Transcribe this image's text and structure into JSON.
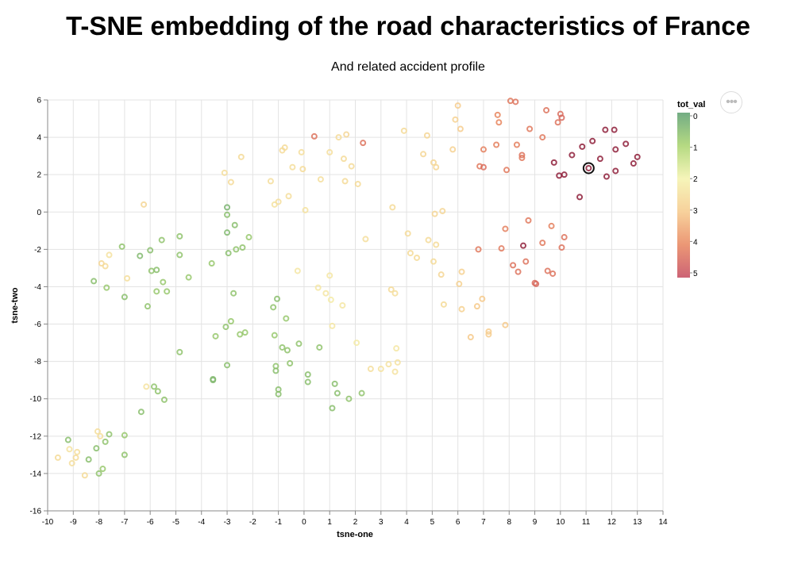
{
  "chart_data": {
    "type": "scatter",
    "title": "T-SNE embedding of the road characteristics of France",
    "subtitle": "And related accident profile",
    "xlabel": "tsne-one",
    "ylabel": "tsne-two",
    "xlim": [
      -10,
      14
    ],
    "ylim": [
      -16,
      6
    ],
    "xticks": [
      "-10",
      "-9",
      "-8",
      "-7",
      "-6",
      "-5",
      "-4",
      "-3",
      "-2",
      "-1",
      "0",
      "1",
      "2",
      "3",
      "4",
      "5",
      "6",
      "7",
      "8",
      "9",
      "10",
      "11",
      "12",
      "13",
      "14"
    ],
    "yticks": [
      "-16",
      "-14",
      "-12",
      "-10",
      "-8",
      "-6",
      "-4",
      "-2",
      "0",
      "2",
      "4",
      "6"
    ],
    "grid": true,
    "legend": {
      "title": "tot_val",
      "placement": "right",
      "domain": [
        0,
        5
      ],
      "labels": [
        "0",
        "1",
        "2",
        "3",
        "4",
        "5"
      ],
      "colors": [
        "#5a9e6f",
        "#a8d36c",
        "#f4f3ad",
        "#f6c98a",
        "#e8855d",
        "#c4485d"
      ]
    },
    "highlighted_point": {
      "x": 11.1,
      "y": 2.35,
      "value": 5
    },
    "points": [
      {
        "x": -8.2,
        "y": -3.7,
        "v": 0.6
      },
      {
        "x": -7.9,
        "y": -2.75,
        "v": 2.7
      },
      {
        "x": -7.75,
        "y": -2.9,
        "v": 2.6
      },
      {
        "x": -7.7,
        "y": -4.05,
        "v": 0.8
      },
      {
        "x": -7.6,
        "y": -2.3,
        "v": 2.4
      },
      {
        "x": -7.1,
        "y": -1.85,
        "v": 0.7
      },
      {
        "x": -7.0,
        "y": -4.55,
        "v": 0.6
      },
      {
        "x": -6.9,
        "y": -3.55,
        "v": 2.5
      },
      {
        "x": -6.4,
        "y": -2.35,
        "v": 0.5
      },
      {
        "x": -6.25,
        "y": 0.4,
        "v": 2.7
      },
      {
        "x": -6.1,
        "y": -5.05,
        "v": 0.7
      },
      {
        "x": -6.0,
        "y": -2.05,
        "v": 0.6
      },
      {
        "x": -5.95,
        "y": -3.15,
        "v": 0.7
      },
      {
        "x": -5.75,
        "y": -3.1,
        "v": 0.6
      },
      {
        "x": -5.75,
        "y": -4.25,
        "v": 0.8
      },
      {
        "x": -5.55,
        "y": -1.5,
        "v": 0.7
      },
      {
        "x": -5.5,
        "y": -3.75,
        "v": 0.8
      },
      {
        "x": -5.35,
        "y": -4.25,
        "v": 0.8
      },
      {
        "x": -4.85,
        "y": -1.3,
        "v": 0.7
      },
      {
        "x": -4.85,
        "y": -2.3,
        "v": 0.7
      },
      {
        "x": -4.5,
        "y": -3.5,
        "v": 0.8
      },
      {
        "x": -3.6,
        "y": -2.75,
        "v": 0.8
      },
      {
        "x": -3.45,
        "y": -6.65,
        "v": 0.8
      },
      {
        "x": -3.55,
        "y": -8.95,
        "v": 0.5
      },
      {
        "x": -3.55,
        "y": -9.0,
        "v": 0.5
      },
      {
        "x": -3.0,
        "y": -8.2,
        "v": 0.6
      },
      {
        "x": -3.05,
        "y": -6.15,
        "v": 0.7
      },
      {
        "x": -3.1,
        "y": 2.1,
        "v": 2.5
      },
      {
        "x": -3.0,
        "y": -1.1,
        "v": 0.5
      },
      {
        "x": -3.0,
        "y": 0.25,
        "v": 0.4
      },
      {
        "x": -3.0,
        "y": -0.15,
        "v": 0.6
      },
      {
        "x": -2.95,
        "y": -2.2,
        "v": 0.6
      },
      {
        "x": -2.85,
        "y": 1.6,
        "v": 2.6
      },
      {
        "x": -2.85,
        "y": -5.85,
        "v": 0.8
      },
      {
        "x": -2.75,
        "y": -4.35,
        "v": 0.7
      },
      {
        "x": -2.7,
        "y": -0.7,
        "v": 0.6
      },
      {
        "x": -2.65,
        "y": -2.0,
        "v": 0.7
      },
      {
        "x": -2.5,
        "y": -6.55,
        "v": 0.8
      },
      {
        "x": -2.45,
        "y": 2.95,
        "v": 2.6
      },
      {
        "x": -2.4,
        "y": -1.9,
        "v": 0.7
      },
      {
        "x": -2.3,
        "y": -6.45,
        "v": 0.8
      },
      {
        "x": -2.15,
        "y": -1.35,
        "v": 0.8
      },
      {
        "x": -1.3,
        "y": 1.65,
        "v": 2.5
      },
      {
        "x": -1.15,
        "y": 0.4,
        "v": 2.4
      },
      {
        "x": -1.2,
        "y": -5.1,
        "v": 0.7
      },
      {
        "x": -1.15,
        "y": -6.6,
        "v": 0.8
      },
      {
        "x": -1.1,
        "y": -8.25,
        "v": 0.7
      },
      {
        "x": -1.1,
        "y": -8.5,
        "v": 0.6
      },
      {
        "x": -1.05,
        "y": -4.65,
        "v": 0.6
      },
      {
        "x": -1.0,
        "y": -9.5,
        "v": 0.6
      },
      {
        "x": -1.0,
        "y": -9.75,
        "v": 0.6
      },
      {
        "x": -1.0,
        "y": 0.55,
        "v": 2.5
      },
      {
        "x": -0.85,
        "y": 3.3,
        "v": 2.6
      },
      {
        "x": -0.85,
        "y": -7.25,
        "v": 0.7
      },
      {
        "x": -0.75,
        "y": 3.45,
        "v": 2.6
      },
      {
        "x": -0.7,
        "y": -5.7,
        "v": 0.8
      },
      {
        "x": -0.65,
        "y": -7.4,
        "v": 0.7
      },
      {
        "x": -0.6,
        "y": 0.85,
        "v": 2.5
      },
      {
        "x": -0.55,
        "y": -8.1,
        "v": 0.7
      },
      {
        "x": -0.45,
        "y": 2.4,
        "v": 2.5
      },
      {
        "x": -0.25,
        "y": -3.15,
        "v": 2.3
      },
      {
        "x": -0.2,
        "y": -7.05,
        "v": 0.7
      },
      {
        "x": -0.1,
        "y": 3.2,
        "v": 2.5
      },
      {
        "x": -0.05,
        "y": 2.3,
        "v": 2.6
      },
      {
        "x": 0.05,
        "y": 0.1,
        "v": 2.4
      },
      {
        "x": 0.15,
        "y": -8.7,
        "v": 0.6
      },
      {
        "x": 0.15,
        "y": -9.1,
        "v": 0.6
      },
      {
        "x": 0.4,
        "y": 4.05,
        "v": 4.3
      },
      {
        "x": 0.55,
        "y": -4.05,
        "v": 2.3
      },
      {
        "x": 0.6,
        "y": -7.25,
        "v": 0.7
      },
      {
        "x": 0.65,
        "y": 1.75,
        "v": 2.5
      },
      {
        "x": 0.85,
        "y": -4.35,
        "v": 2.3
      },
      {
        "x": 1.0,
        "y": 3.2,
        "v": 2.5
      },
      {
        "x": 1.05,
        "y": -4.7,
        "v": 2.2
      },
      {
        "x": 1.0,
        "y": -3.4,
        "v": 2.3
      },
      {
        "x": 1.1,
        "y": -6.1,
        "v": 2.3
      },
      {
        "x": 1.1,
        "y": -10.5,
        "v": 0.6
      },
      {
        "x": 1.2,
        "y": -9.2,
        "v": 0.6
      },
      {
        "x": 1.3,
        "y": -9.7,
        "v": 0.6
      },
      {
        "x": 1.35,
        "y": 4.0,
        "v": 2.6
      },
      {
        "x": 1.5,
        "y": -5.0,
        "v": 2.3
      },
      {
        "x": 1.55,
        "y": 2.85,
        "v": 2.6
      },
      {
        "x": 1.6,
        "y": 1.65,
        "v": 2.6
      },
      {
        "x": 1.65,
        "y": 4.15,
        "v": 2.7
      },
      {
        "x": 1.75,
        "y": -10.0,
        "v": 0.7
      },
      {
        "x": 1.85,
        "y": 2.45,
        "v": 2.6
      },
      {
        "x": 2.05,
        "y": -7.0,
        "v": 2.2
      },
      {
        "x": 2.1,
        "y": 1.5,
        "v": 2.6
      },
      {
        "x": 2.25,
        "y": -9.7,
        "v": 0.7
      },
      {
        "x": 2.3,
        "y": 3.7,
        "v": 4.3
      },
      {
        "x": 2.4,
        "y": -1.45,
        "v": 2.5
      },
      {
        "x": 2.6,
        "y": -8.4,
        "v": 2.5
      },
      {
        "x": 3.0,
        "y": -8.4,
        "v": 2.4
      },
      {
        "x": 3.3,
        "y": -8.15,
        "v": 2.4
      },
      {
        "x": 3.4,
        "y": -4.15,
        "v": 2.6
      },
      {
        "x": 3.45,
        "y": 0.25,
        "v": 2.6
      },
      {
        "x": 3.55,
        "y": -4.35,
        "v": 2.5
      },
      {
        "x": 3.6,
        "y": -7.3,
        "v": 2.3
      },
      {
        "x": 3.55,
        "y": -8.55,
        "v": 2.4
      },
      {
        "x": 3.65,
        "y": -8.05,
        "v": 2.4
      },
      {
        "x": 3.9,
        "y": 4.35,
        "v": 2.6
      },
      {
        "x": 4.05,
        "y": -1.15,
        "v": 2.6
      },
      {
        "x": 4.15,
        "y": -2.2,
        "v": 2.6
      },
      {
        "x": 4.4,
        "y": -2.45,
        "v": 2.6
      },
      {
        "x": 4.65,
        "y": 3.1,
        "v": 2.7
      },
      {
        "x": 4.8,
        "y": 4.1,
        "v": 2.7
      },
      {
        "x": 4.85,
        "y": -1.5,
        "v": 2.6
      },
      {
        "x": 5.05,
        "y": -2.65,
        "v": 2.6
      },
      {
        "x": 5.05,
        "y": 2.65,
        "v": 2.7
      },
      {
        "x": 5.1,
        "y": -0.1,
        "v": 2.7
      },
      {
        "x": 5.15,
        "y": 2.4,
        "v": 2.7
      },
      {
        "x": 5.15,
        "y": -1.75,
        "v": 2.6
      },
      {
        "x": 5.35,
        "y": -3.35,
        "v": 2.7
      },
      {
        "x": 5.4,
        "y": 0.05,
        "v": 2.7
      },
      {
        "x": 5.45,
        "y": -4.95,
        "v": 2.6
      },
      {
        "x": 5.8,
        "y": 3.35,
        "v": 2.8
      },
      {
        "x": 5.9,
        "y": 4.95,
        "v": 2.8
      },
      {
        "x": 6.0,
        "y": 5.7,
        "v": 2.9
      },
      {
        "x": 6.05,
        "y": -3.85,
        "v": 2.8
      },
      {
        "x": 6.15,
        "y": -3.2,
        "v": 2.8
      },
      {
        "x": 6.15,
        "y": -5.2,
        "v": 2.8
      },
      {
        "x": 6.1,
        "y": 4.45,
        "v": 2.9
      },
      {
        "x": 6.5,
        "y": -6.7,
        "v": 3.0
      },
      {
        "x": 6.75,
        "y": -5.05,
        "v": 3.0
      },
      {
        "x": 6.8,
        "y": -2.0,
        "v": 4.2
      },
      {
        "x": 6.85,
        "y": 2.45,
        "v": 4.2
      },
      {
        "x": 6.95,
        "y": -4.65,
        "v": 3.0
      },
      {
        "x": 7.0,
        "y": 2.4,
        "v": 4.4
      },
      {
        "x": 7.0,
        "y": 3.35,
        "v": 4.1
      },
      {
        "x": 7.2,
        "y": -6.4,
        "v": 2.9
      },
      {
        "x": 7.2,
        "y": -6.55,
        "v": 2.9
      },
      {
        "x": 7.5,
        "y": 3.6,
        "v": 4.1
      },
      {
        "x": 7.55,
        "y": 5.2,
        "v": 4.0
      },
      {
        "x": 7.6,
        "y": 4.8,
        "v": 4.0
      },
      {
        "x": 7.7,
        "y": -1.95,
        "v": 4.2
      },
      {
        "x": 7.85,
        "y": -6.05,
        "v": 3.0
      },
      {
        "x": 7.85,
        "y": -0.9,
        "v": 4.1
      },
      {
        "x": 7.9,
        "y": 2.25,
        "v": 4.2
      },
      {
        "x": 8.05,
        "y": 5.95,
        "v": 4.2
      },
      {
        "x": 8.15,
        "y": -2.85,
        "v": 4.3
      },
      {
        "x": 8.25,
        "y": 5.9,
        "v": 4.3
      },
      {
        "x": 8.3,
        "y": 3.6,
        "v": 4.1
      },
      {
        "x": 8.35,
        "y": -3.2,
        "v": 4.3
      },
      {
        "x": 8.5,
        "y": 2.9,
        "v": 4.2
      },
      {
        "x": 8.5,
        "y": 3.05,
        "v": 4.3
      },
      {
        "x": 8.55,
        "y": -1.8,
        "v": 5.0
      },
      {
        "x": 8.65,
        "y": -2.65,
        "v": 4.3
      },
      {
        "x": 8.75,
        "y": -0.45,
        "v": 4.2
      },
      {
        "x": 8.8,
        "y": 4.45,
        "v": 4.2
      },
      {
        "x": 9.0,
        "y": -3.8,
        "v": 4.4
      },
      {
        "x": 9.05,
        "y": -3.85,
        "v": 4.5
      },
      {
        "x": 9.3,
        "y": -1.65,
        "v": 4.2
      },
      {
        "x": 9.3,
        "y": 4.0,
        "v": 4.2
      },
      {
        "x": 9.45,
        "y": 5.45,
        "v": 4.3
      },
      {
        "x": 9.5,
        "y": -3.15,
        "v": 4.3
      },
      {
        "x": 9.65,
        "y": -0.75,
        "v": 4.1
      },
      {
        "x": 9.7,
        "y": -3.3,
        "v": 4.3
      },
      {
        "x": 9.75,
        "y": 2.65,
        "v": 5.0
      },
      {
        "x": 9.9,
        "y": 4.8,
        "v": 4.3
      },
      {
        "x": 9.95,
        "y": 1.95,
        "v": 5.0
      },
      {
        "x": 10.0,
        "y": 5.25,
        "v": 4.4
      },
      {
        "x": 10.05,
        "y": 5.05,
        "v": 4.5
      },
      {
        "x": 10.05,
        "y": -1.9,
        "v": 4.3
      },
      {
        "x": 10.15,
        "y": -1.35,
        "v": 4.3
      },
      {
        "x": 10.15,
        "y": 2.0,
        "v": 5.0
      },
      {
        "x": 10.45,
        "y": 3.05,
        "v": 5.0
      },
      {
        "x": 10.75,
        "y": 0.8,
        "v": 5.0
      },
      {
        "x": 10.85,
        "y": 3.5,
        "v": 5.0
      },
      {
        "x": 11.1,
        "y": 2.35,
        "v": 5.0
      },
      {
        "x": 11.25,
        "y": 3.8,
        "v": 5.0
      },
      {
        "x": 11.55,
        "y": 2.85,
        "v": 5.0
      },
      {
        "x": 11.75,
        "y": 4.4,
        "v": 5.0
      },
      {
        "x": 11.8,
        "y": 1.9,
        "v": 5.0
      },
      {
        "x": 12.1,
        "y": 4.4,
        "v": 5.0
      },
      {
        "x": 12.15,
        "y": 2.2,
        "v": 5.0
      },
      {
        "x": 12.15,
        "y": 3.35,
        "v": 5.0
      },
      {
        "x": 12.55,
        "y": 3.65,
        "v": 5.0
      },
      {
        "x": 12.85,
        "y": 2.6,
        "v": 5.0
      },
      {
        "x": 13.0,
        "y": 2.95,
        "v": 5.0
      },
      {
        "x": -9.6,
        "y": -13.15,
        "v": 2.6
      },
      {
        "x": -9.2,
        "y": -12.2,
        "v": 0.6
      },
      {
        "x": -9.15,
        "y": -12.7,
        "v": 2.4
      },
      {
        "x": -9.05,
        "y": -13.45,
        "v": 2.5
      },
      {
        "x": -8.9,
        "y": -13.15,
        "v": 2.6
      },
      {
        "x": -8.85,
        "y": -12.85,
        "v": 2.5
      },
      {
        "x": -8.55,
        "y": -14.1,
        "v": 2.6
      },
      {
        "x": -8.4,
        "y": -13.25,
        "v": 0.6
      },
      {
        "x": -8.1,
        "y": -12.65,
        "v": 0.6
      },
      {
        "x": -8.05,
        "y": -11.75,
        "v": 2.5
      },
      {
        "x": -8.0,
        "y": -14.0,
        "v": 0.7
      },
      {
        "x": -7.95,
        "y": -12.0,
        "v": 2.5
      },
      {
        "x": -7.85,
        "y": -13.75,
        "v": 0.8
      },
      {
        "x": -7.75,
        "y": -12.3,
        "v": 0.7
      },
      {
        "x": -7.6,
        "y": -11.9,
        "v": 0.7
      },
      {
        "x": -7.0,
        "y": -11.95,
        "v": 0.8
      },
      {
        "x": -7.0,
        "y": -13.0,
        "v": 0.7
      },
      {
        "x": -6.35,
        "y": -10.7,
        "v": 0.6
      },
      {
        "x": -6.15,
        "y": -9.35,
        "v": 2.4
      },
      {
        "x": -5.85,
        "y": -9.35,
        "v": 0.7
      },
      {
        "x": -5.7,
        "y": -9.6,
        "v": 0.7
      },
      {
        "x": -5.45,
        "y": -10.05,
        "v": 0.7
      },
      {
        "x": -4.85,
        "y": -7.5,
        "v": 0.7
      }
    ]
  }
}
